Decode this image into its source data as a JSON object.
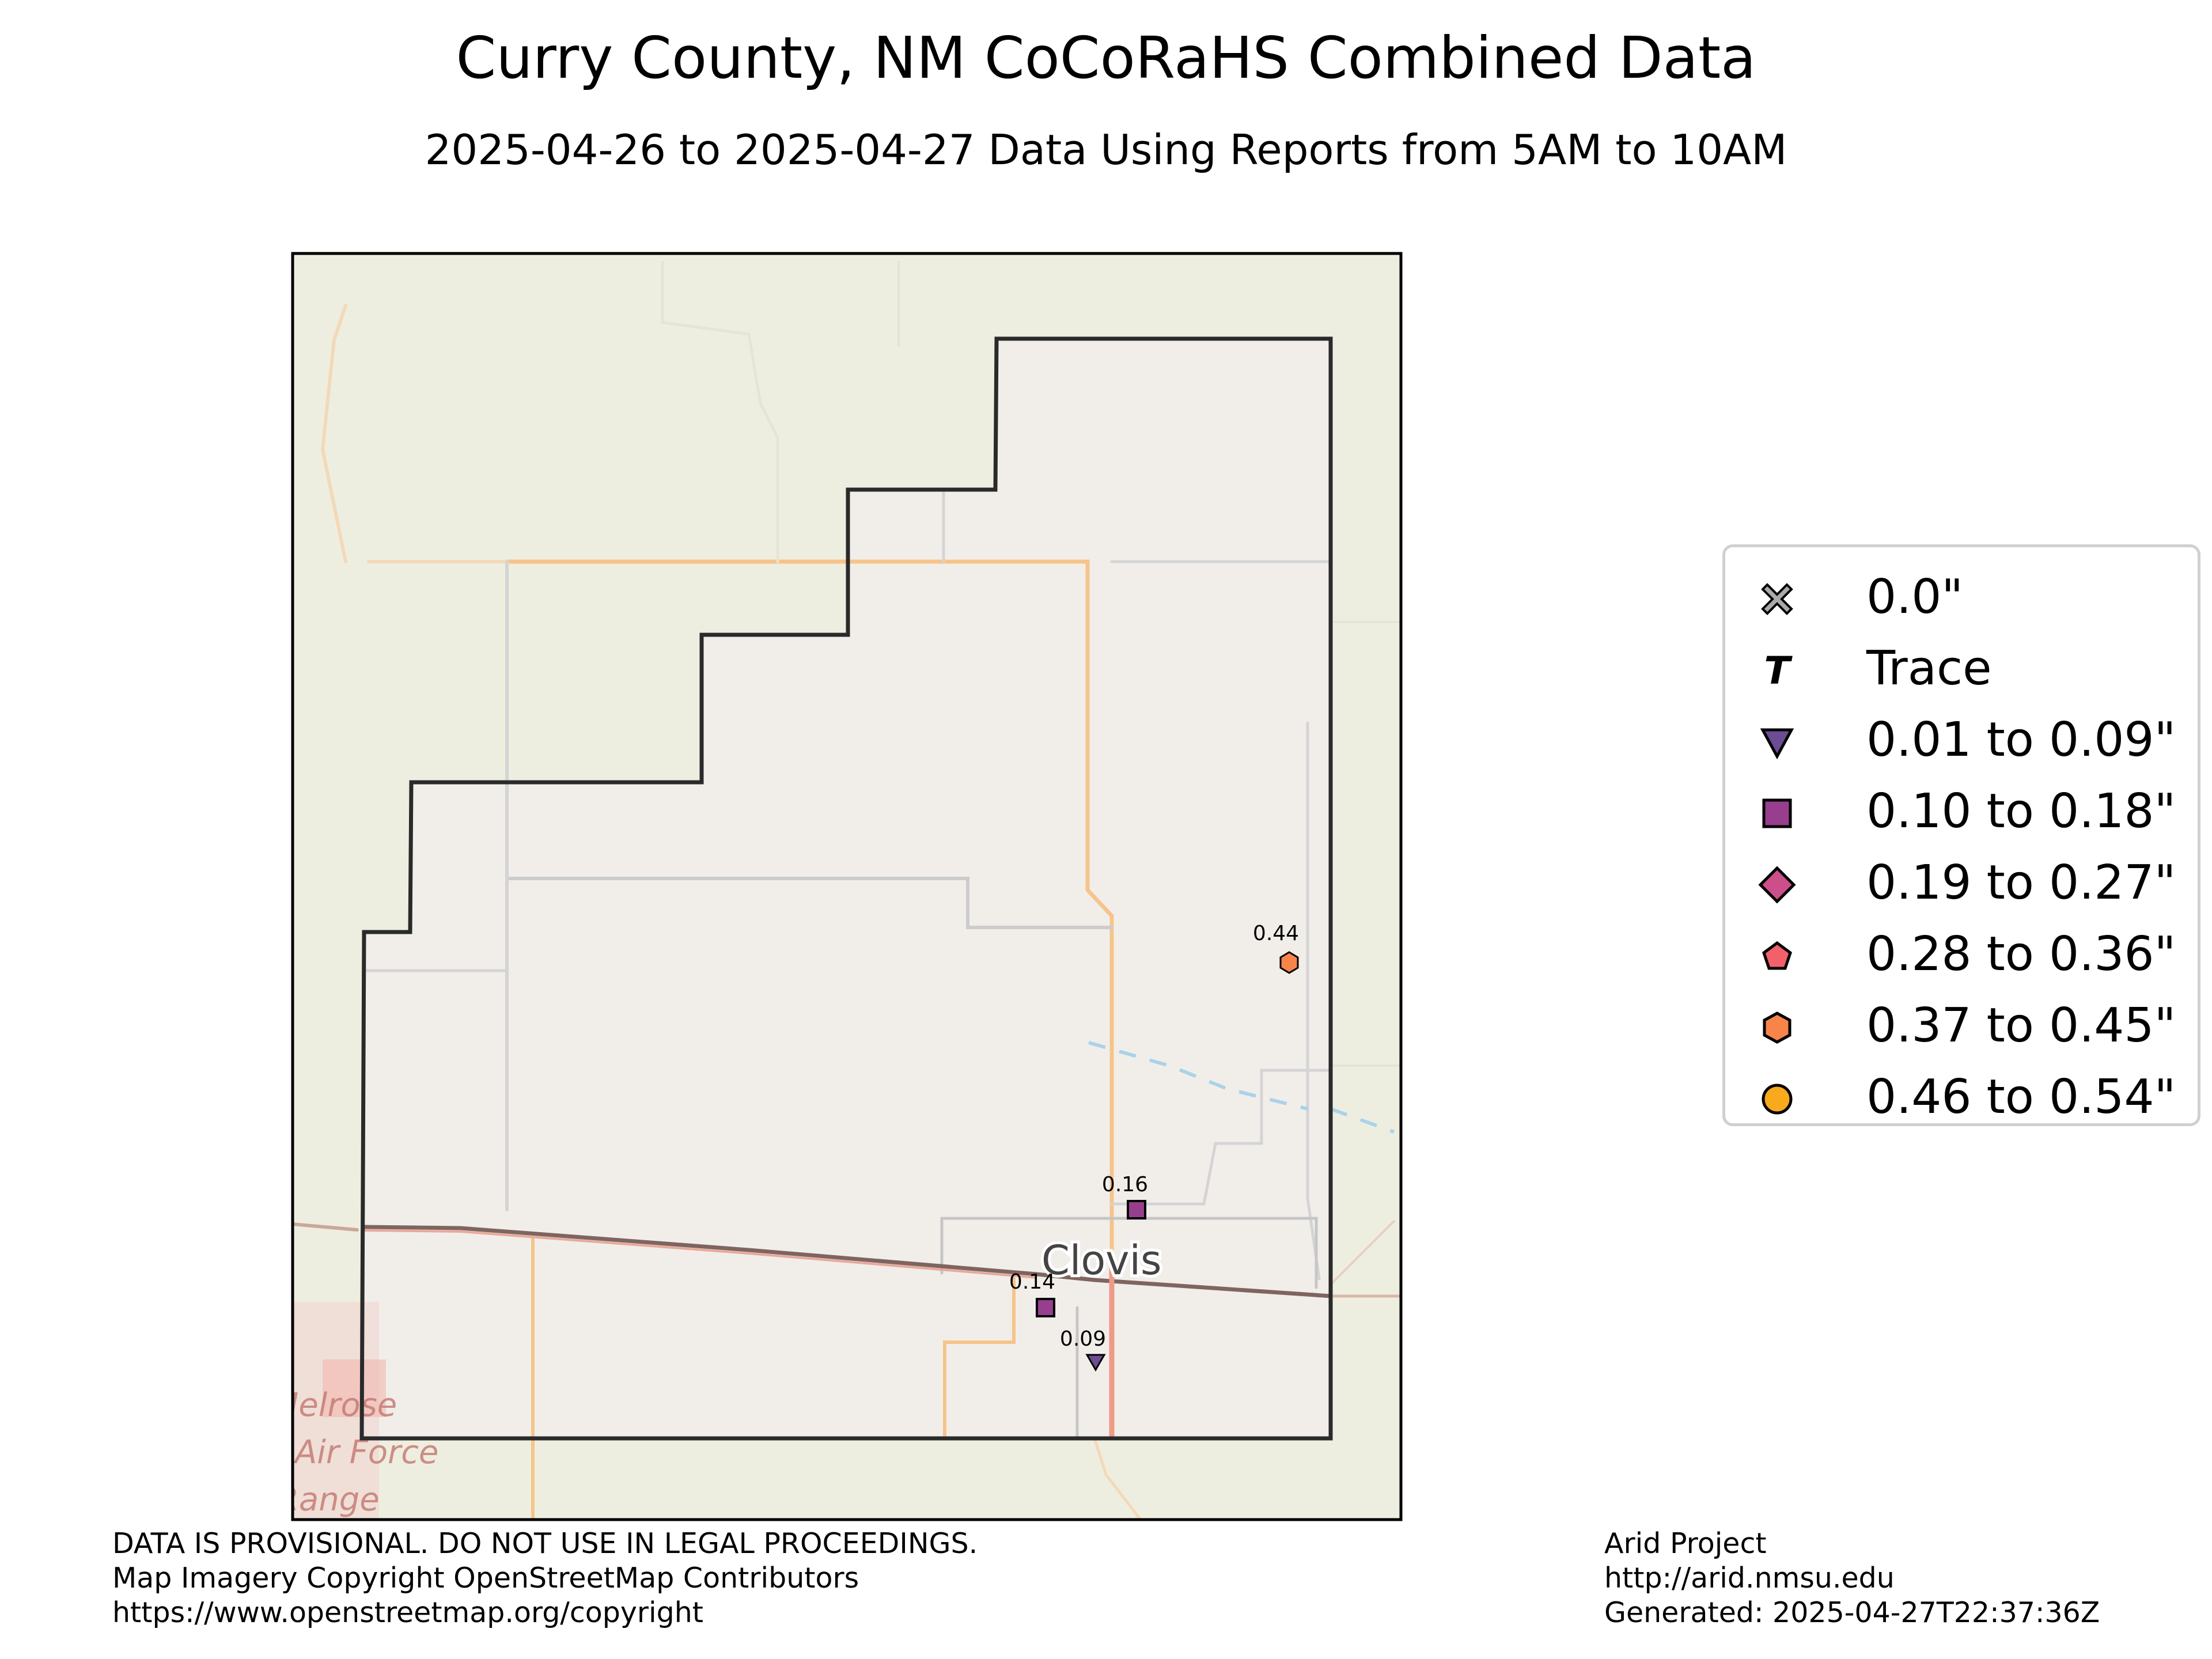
{
  "title": "Curry County, NM CoCoRaHS Combined Data",
  "subtitle": "2025-04-26 to 2025-04-27 Data Using Reports from 5AM to 10AM",
  "map": {
    "place_labels": [
      "Clovis",
      "Melrose",
      "Air Force",
      "Range"
    ],
    "stations": [
      {
        "value": "0.44",
        "category": "0.37 to 0.45\""
      },
      {
        "value": "0.16",
        "category": "0.10 to 0.18\""
      },
      {
        "value": "0.14",
        "category": "0.10 to 0.18\""
      },
      {
        "value": "0.09",
        "category": "0.01 to 0.09\""
      }
    ]
  },
  "legend": [
    {
      "label": "0.0\"",
      "marker": "x-icon",
      "color": "#aaaaaa"
    },
    {
      "label": "Trace",
      "marker": "trace-t-icon",
      "color": "#000000"
    },
    {
      "label": "0.01 to 0.09\"",
      "marker": "triangle-down-icon",
      "color": "#6c4c93"
    },
    {
      "label": "0.10 to 0.18\"",
      "marker": "square-icon",
      "color": "#973f8e"
    },
    {
      "label": "0.19 to 0.27\"",
      "marker": "diamond-icon",
      "color": "#cc4f8b"
    },
    {
      "label": "0.28 to 0.36\"",
      "marker": "pentagon-icon",
      "color": "#f2606b"
    },
    {
      "label": "0.37 to 0.45\"",
      "marker": "hexagon-icon",
      "color": "#f7854a"
    },
    {
      "label": "0.46 to 0.54\"",
      "marker": "circle-icon",
      "color": "#f8a91c"
    }
  ],
  "footer_left": [
    "DATA IS PROVISIONAL. DO NOT USE IN LEGAL PROCEEDINGS.",
    "Map Imagery Copyright OpenStreetMap Contributors",
    "https://www.openstreetmap.org/copyright"
  ],
  "footer_right": [
    "Arid Project",
    "http://arid.nmsu.edu",
    "Generated: 2025-04-27T22:37:36Z"
  ]
}
